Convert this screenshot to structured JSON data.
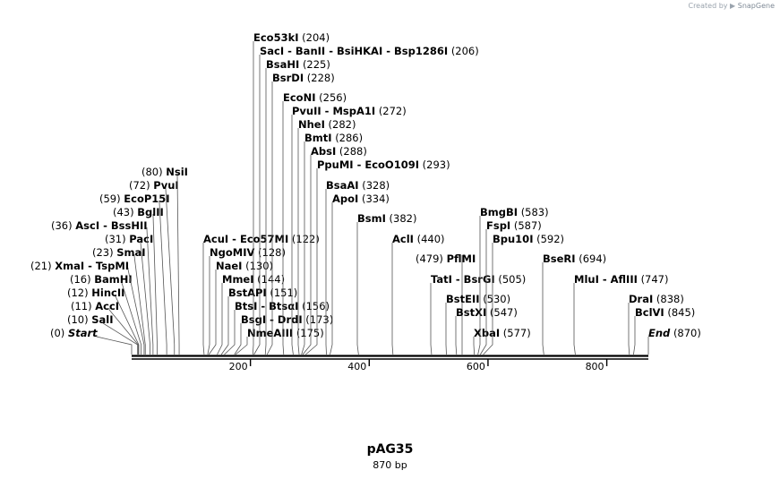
{
  "credit": {
    "prefix": "Created by",
    "brand": "SnapGene"
  },
  "map": {
    "name": "pAG35",
    "length_label": "870 bp",
    "length_bp": 870,
    "ticks": [
      "200",
      "400",
      "600",
      "800"
    ],
    "sites": [
      {
        "label": "Start",
        "pos": "(0)",
        "bp": 0,
        "side": "left",
        "italic": true
      },
      {
        "label": "SalI",
        "pos": "(10)",
        "bp": 10,
        "side": "left"
      },
      {
        "label": "AccI",
        "pos": "(11)",
        "bp": 11,
        "side": "left"
      },
      {
        "label": "HincII",
        "pos": "(12)",
        "bp": 12,
        "side": "left"
      },
      {
        "label": "BamHI",
        "pos": "(16)",
        "bp": 16,
        "side": "left"
      },
      {
        "label": "XmaI  - TspMI",
        "pos": "(21)",
        "bp": 21,
        "side": "left"
      },
      {
        "label": "SmaI",
        "pos": "(23)",
        "bp": 23,
        "side": "left"
      },
      {
        "label": "PacI",
        "pos": "(31)",
        "bp": 31,
        "side": "left"
      },
      {
        "label": "AscI  - BssHII",
        "pos": "(36)",
        "bp": 36,
        "side": "left"
      },
      {
        "label": "BglII",
        "pos": "(43)",
        "bp": 43,
        "side": "left"
      },
      {
        "label": "EcoP15I",
        "pos": "(59)",
        "bp": 59,
        "side": "left"
      },
      {
        "label": "PvuI",
        "pos": "(72)",
        "bp": 72,
        "side": "left"
      },
      {
        "label": "NsiI",
        "pos": "(80)",
        "bp": 80,
        "side": "left"
      },
      {
        "label": "AcuI  - Eco57MI",
        "pos": "(122)",
        "bp": 122,
        "side": "right"
      },
      {
        "label": "NgoMIV",
        "pos": "(128)",
        "bp": 128,
        "side": "right"
      },
      {
        "label": "NaeI",
        "pos": "(130)",
        "bp": 130,
        "side": "right"
      },
      {
        "label": "MmeI",
        "pos": "(144)",
        "bp": 144,
        "side": "right"
      },
      {
        "label": "BstAPI",
        "pos": "(151)",
        "bp": 151,
        "side": "right"
      },
      {
        "label": "BtsI  - BtsαI",
        "pos": "(156)",
        "bp": 156,
        "side": "right"
      },
      {
        "label": "BsgI  - DrdI",
        "pos": "(173)",
        "bp": 173,
        "side": "right"
      },
      {
        "label": "NmeAIII",
        "pos": "(175)",
        "bp": 175,
        "side": "right"
      },
      {
        "label": "Eco53kI",
        "pos": "(204)",
        "bp": 204,
        "side": "right"
      },
      {
        "label": "SacI  - BanII  - BsiHKAI  - Bsp1286I",
        "pos": "(206)",
        "bp": 206,
        "side": "right"
      },
      {
        "label": "BsaHI",
        "pos": "(225)",
        "bp": 225,
        "side": "right"
      },
      {
        "label": "BsrDI",
        "pos": "(228)",
        "bp": 228,
        "side": "right"
      },
      {
        "label": "EcoNI",
        "pos": "(256)",
        "bp": 256,
        "side": "right"
      },
      {
        "label": "PvuII  - MspA1I",
        "pos": "(272)",
        "bp": 272,
        "side": "right"
      },
      {
        "label": "NheI",
        "pos": "(282)",
        "bp": 282,
        "side": "right"
      },
      {
        "label": "BmtI",
        "pos": "(286)",
        "bp": 286,
        "side": "right"
      },
      {
        "label": "AbsI",
        "pos": "(288)",
        "bp": 288,
        "side": "right"
      },
      {
        "label": "PpuMI  - EcoO109I",
        "pos": "(293)",
        "bp": 293,
        "side": "right"
      },
      {
        "label": "BsaAI",
        "pos": "(328)",
        "bp": 328,
        "side": "right"
      },
      {
        "label": "ApoI",
        "pos": "(334)",
        "bp": 334,
        "side": "right"
      },
      {
        "label": "BsmI",
        "pos": "(382)",
        "bp": 382,
        "side": "right"
      },
      {
        "label": "AclI",
        "pos": "(440)",
        "bp": 440,
        "side": "right"
      },
      {
        "label": "PflMI",
        "pos": "(479)",
        "bp": 479,
        "side": "left"
      },
      {
        "label": "TatI  - BsrGI",
        "pos": "(505)",
        "bp": 505,
        "side": "right"
      },
      {
        "label": "BstEII",
        "pos": "(530)",
        "bp": 530,
        "side": "right"
      },
      {
        "label": "BstXI",
        "pos": "(547)",
        "bp": 547,
        "side": "right"
      },
      {
        "label": "XbaI",
        "pos": "(577)",
        "bp": 577,
        "side": "right"
      },
      {
        "label": "BmgBI",
        "pos": "(583)",
        "bp": 583,
        "side": "right"
      },
      {
        "label": "FspI",
        "pos": "(587)",
        "bp": 587,
        "side": "right"
      },
      {
        "label": "Bpu10I",
        "pos": "(592)",
        "bp": 592,
        "side": "right"
      },
      {
        "label": "BseRI",
        "pos": "(694)",
        "bp": 694,
        "side": "right"
      },
      {
        "label": "MluI  - AflIII",
        "pos": "(747)",
        "bp": 747,
        "side": "right"
      },
      {
        "label": "DraI",
        "pos": "(838)",
        "bp": 838,
        "side": "right"
      },
      {
        "label": "BclVI",
        "pos": "(845)",
        "bp": 845,
        "side": "right"
      },
      {
        "label": "End",
        "pos": "(870)",
        "bp": 870,
        "side": "right",
        "italic": true
      }
    ]
  }
}
